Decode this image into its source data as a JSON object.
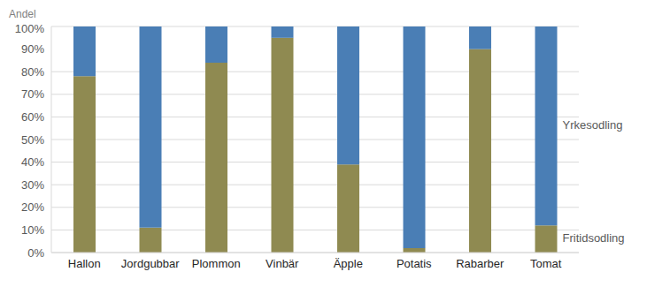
{
  "chart_data": {
    "type": "bar",
    "ylabel": "Andel",
    "categories": [
      "Hallon",
      "Jordgubbar",
      "Plommon",
      "Vinbär",
      "Äpple",
      "Potatis",
      "Rabarber",
      "Tomat"
    ],
    "series": [
      {
        "name": "Fritidsodling",
        "color": "#8f8a51",
        "values": [
          78,
          11,
          84,
          95,
          39,
          2,
          90,
          12
        ]
      },
      {
        "name": "Yrkesodling",
        "color": "#4a7eb5",
        "values": [
          22,
          89,
          16,
          5,
          61,
          98,
          10,
          88
        ]
      }
    ],
    "stacked": true,
    "legend": "right",
    "ylim": [
      0,
      100
    ],
    "yticks": [
      {
        "value": 0,
        "label": "0%"
      },
      {
        "value": 10,
        "label": "10%"
      },
      {
        "value": 20,
        "label": "20%"
      },
      {
        "value": 30,
        "label": "30%"
      },
      {
        "value": 40,
        "label": "40%"
      },
      {
        "value": 50,
        "label": "50%"
      },
      {
        "value": 60,
        "label": "60%"
      },
      {
        "value": 70,
        "label": "70%"
      },
      {
        "value": 80,
        "label": "80%"
      },
      {
        "value": 90,
        "label": "90%"
      },
      {
        "value": 100,
        "label": "100%"
      }
    ],
    "grid": true
  }
}
